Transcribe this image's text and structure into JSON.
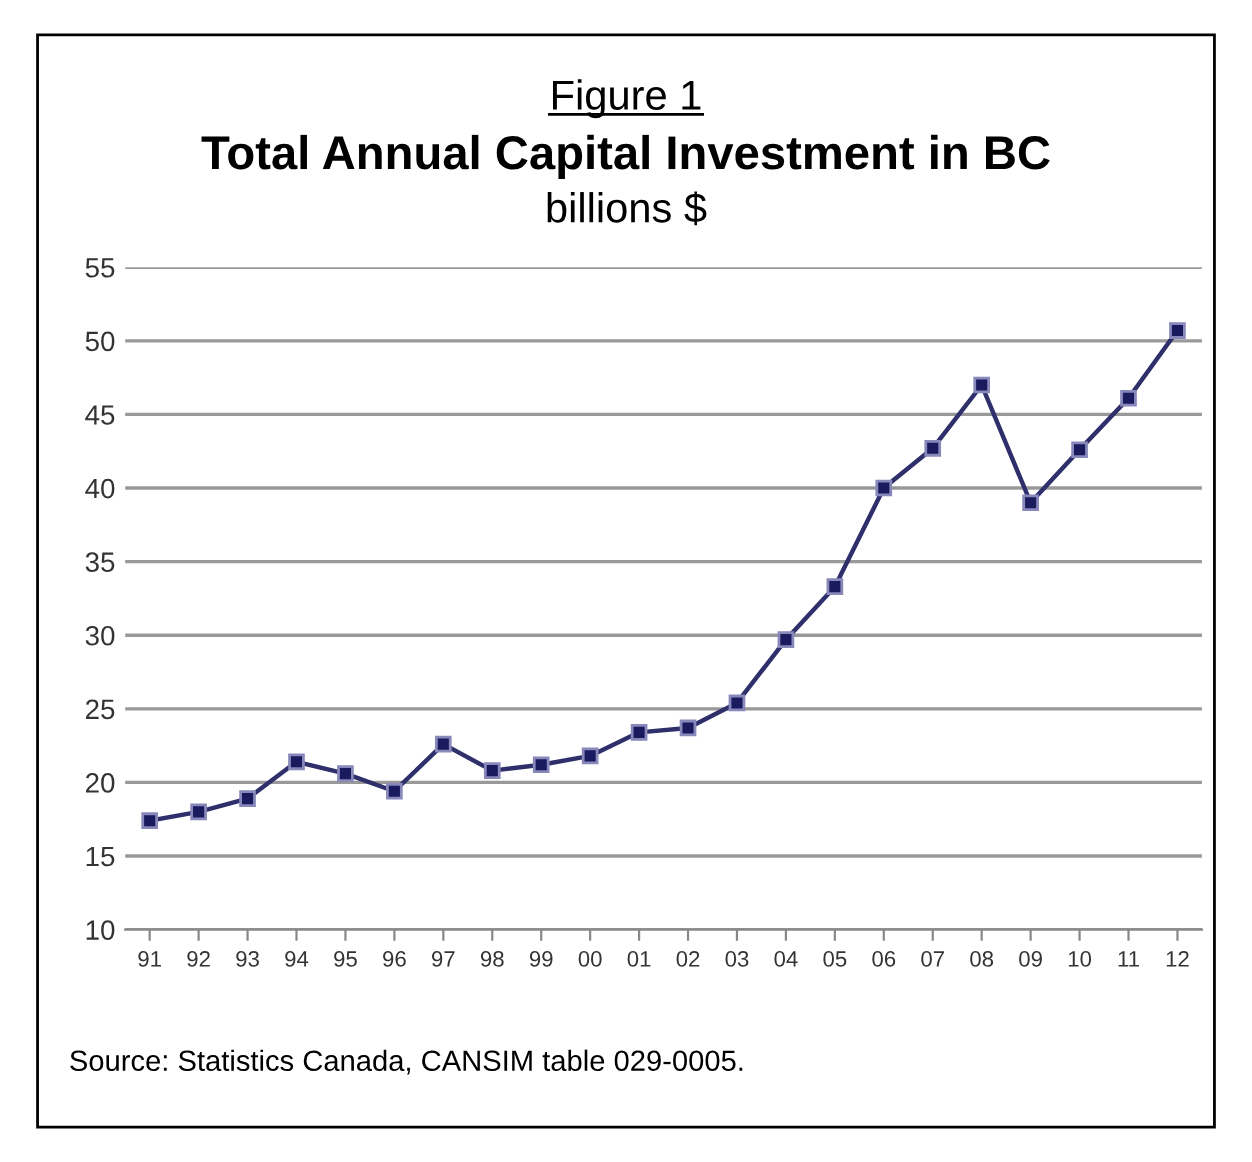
{
  "chart_data": {
    "type": "line",
    "title": "Figure 1",
    "subtitle": "Total Annual Capital Investment in BC",
    "ylabel": "billions $",
    "categories": [
      "91",
      "92",
      "93",
      "94",
      "95",
      "96",
      "97",
      "98",
      "99",
      "00",
      "01",
      "02",
      "03",
      "04",
      "05",
      "06",
      "07",
      "08",
      "09",
      "10",
      "11",
      "12"
    ],
    "series": [
      {
        "color": "#2f2f6b",
        "values": [
          17.4,
          18.0,
          18.9,
          21.4,
          20.6,
          19.4,
          22.6,
          20.8,
          21.2,
          21.8,
          23.4,
          23.7,
          25.4,
          29.7,
          33.3,
          40.0,
          42.7,
          47.0,
          39.0,
          42.6,
          46.1,
          50.7
        ]
      }
    ],
    "ylim": [
      10,
      55
    ],
    "yticks": [
      10,
      15,
      20,
      25,
      30,
      35,
      40,
      45,
      50,
      55
    ],
    "grid": "y",
    "marker": "square",
    "line_style": "solid",
    "legend": false,
    "annotations": [
      "Source: Statistics Canada, CANSIM table 029-0005."
    ]
  }
}
